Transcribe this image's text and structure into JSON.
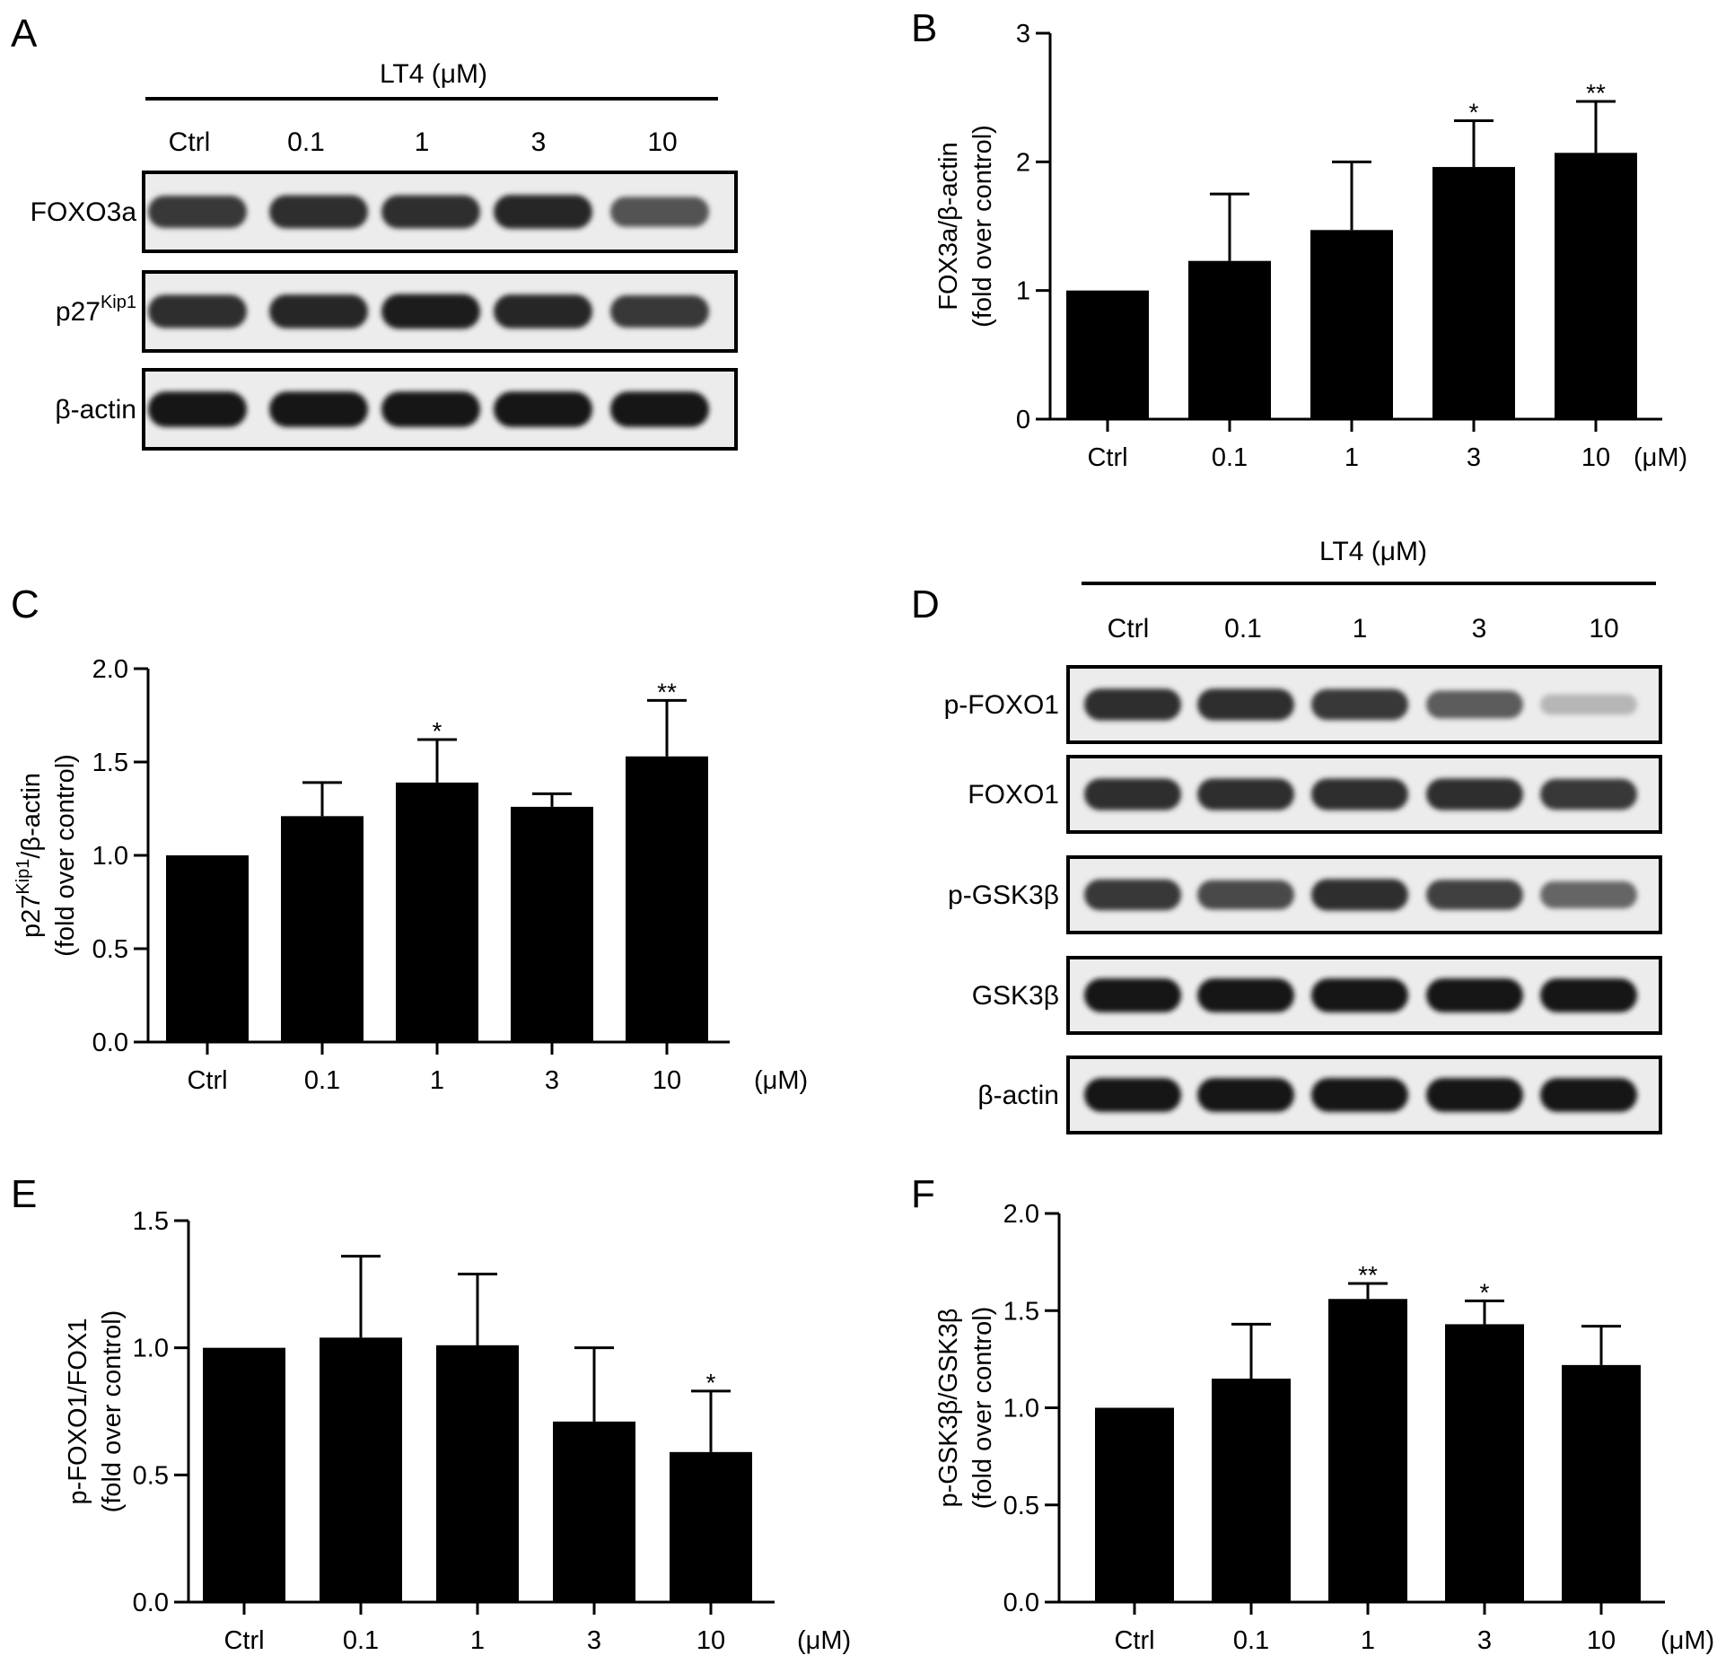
{
  "panels": {
    "A": "A",
    "B": "B",
    "C": "C",
    "D": "D",
    "E": "E",
    "F": "F"
  },
  "blot_A": {
    "treatment": "LT4 (μM)",
    "lanes": [
      "Ctrl",
      "0.1",
      "1",
      "3",
      "10"
    ],
    "rows": [
      {
        "label": "FOXO3a",
        "sup": "",
        "intensity": [
          0.8,
          0.85,
          0.85,
          0.9,
          0.65
        ]
      },
      {
        "label": "p27",
        "sup": "Kip1",
        "intensity": [
          0.85,
          0.9,
          0.95,
          0.9,
          0.8
        ]
      },
      {
        "label": "β-actin",
        "sup": "",
        "intensity": [
          1.0,
          1.0,
          1.0,
          1.0,
          1.0
        ]
      }
    ]
  },
  "blot_D": {
    "treatment": "LT4 (μM)",
    "lanes": [
      "Ctrl",
      "0.1",
      "1",
      "3",
      "10"
    ],
    "rows": [
      {
        "label": "p-FOXO1",
        "sup": "",
        "intensity": [
          0.85,
          0.85,
          0.8,
          0.6,
          0.1
        ]
      },
      {
        "label": "FOXO1",
        "sup": "",
        "intensity": [
          0.85,
          0.85,
          0.85,
          0.85,
          0.8
        ]
      },
      {
        "label": "p-GSK3β",
        "sup": "",
        "intensity": [
          0.8,
          0.7,
          0.85,
          0.75,
          0.55
        ]
      },
      {
        "label": "GSK3β",
        "sup": "",
        "intensity": [
          1.0,
          1.0,
          1.0,
          1.0,
          1.0
        ]
      },
      {
        "label": "β-actin",
        "sup": "",
        "intensity": [
          1.0,
          1.0,
          1.0,
          1.0,
          1.0
        ]
      }
    ]
  },
  "chart_data": [
    {
      "panel": "B",
      "type": "bar",
      "categories": [
        "Ctrl",
        "0.1",
        "1",
        "3",
        "10"
      ],
      "values": [
        1.0,
        1.23,
        1.47,
        1.96,
        2.07
      ],
      "errors": [
        0,
        0.52,
        0.53,
        0.36,
        0.4
      ],
      "significance": [
        "",
        "",
        "",
        "*",
        "**"
      ],
      "ylabel_line1": "FOX3a/β-actin",
      "ylabel_line2": "(fold over control)",
      "unit": "(μM)",
      "ylim": [
        0,
        3
      ],
      "yticks": [
        0,
        1,
        2,
        3
      ],
      "ytick_labels": [
        "0",
        "1",
        "2",
        "3"
      ],
      "grid": false,
      "color": "#000000"
    },
    {
      "panel": "C",
      "type": "bar",
      "categories": [
        "Ctrl",
        "0.1",
        "1",
        "3",
        "10"
      ],
      "values": [
        1.0,
        1.21,
        1.39,
        1.26,
        1.53
      ],
      "errors": [
        0,
        0.18,
        0.23,
        0.07,
        0.3
      ],
      "significance": [
        "",
        "",
        "*",
        "",
        "**"
      ],
      "ylabel_line1": "p27Kip1/β-actin",
      "ylabel_line2": "(fold over control)",
      "unit": "(μM)",
      "ylim": [
        0,
        2
      ],
      "yticks": [
        0,
        0.5,
        1,
        1.5,
        2
      ],
      "ytick_labels": [
        "0.0",
        "0.5",
        "1.0",
        "1.5",
        "2.0"
      ],
      "grid": false,
      "color": "#000000"
    },
    {
      "panel": "E",
      "type": "bar",
      "categories": [
        "Ctrl",
        "0.1",
        "1",
        "3",
        "10"
      ],
      "values": [
        1.0,
        1.04,
        1.01,
        0.71,
        0.59
      ],
      "errors": [
        0,
        0.32,
        0.28,
        0.29,
        0.24
      ],
      "significance": [
        "",
        "",
        "",
        "",
        "*"
      ],
      "ylabel_line1": "p-FOXO1/FOX1",
      "ylabel_line2": "(fold over control)",
      "unit": "(μM)",
      "ylim": [
        0,
        1.5
      ],
      "yticks": [
        0,
        0.5,
        1,
        1.5
      ],
      "ytick_labels": [
        "0.0",
        "0.5",
        "1.0",
        "1.5"
      ],
      "grid": false,
      "color": "#000000"
    },
    {
      "panel": "F",
      "type": "bar",
      "categories": [
        "Ctrl",
        "0.1",
        "1",
        "3",
        "10"
      ],
      "values": [
        1.0,
        1.15,
        1.56,
        1.43,
        1.22
      ],
      "errors": [
        0,
        0.28,
        0.08,
        0.12,
        0.2
      ],
      "significance": [
        "",
        "",
        "**",
        "*",
        ""
      ],
      "ylabel_line1": "p-GSK3β/GSK3β",
      "ylabel_line2": "(fold over control)",
      "unit": "(μM)",
      "ylim": [
        0,
        2
      ],
      "yticks": [
        0,
        0.5,
        1,
        1.5,
        2
      ],
      "ytick_labels": [
        "0.0",
        "0.5",
        "1.0",
        "1.5",
        "2.0"
      ],
      "grid": false,
      "color": "#000000"
    }
  ]
}
